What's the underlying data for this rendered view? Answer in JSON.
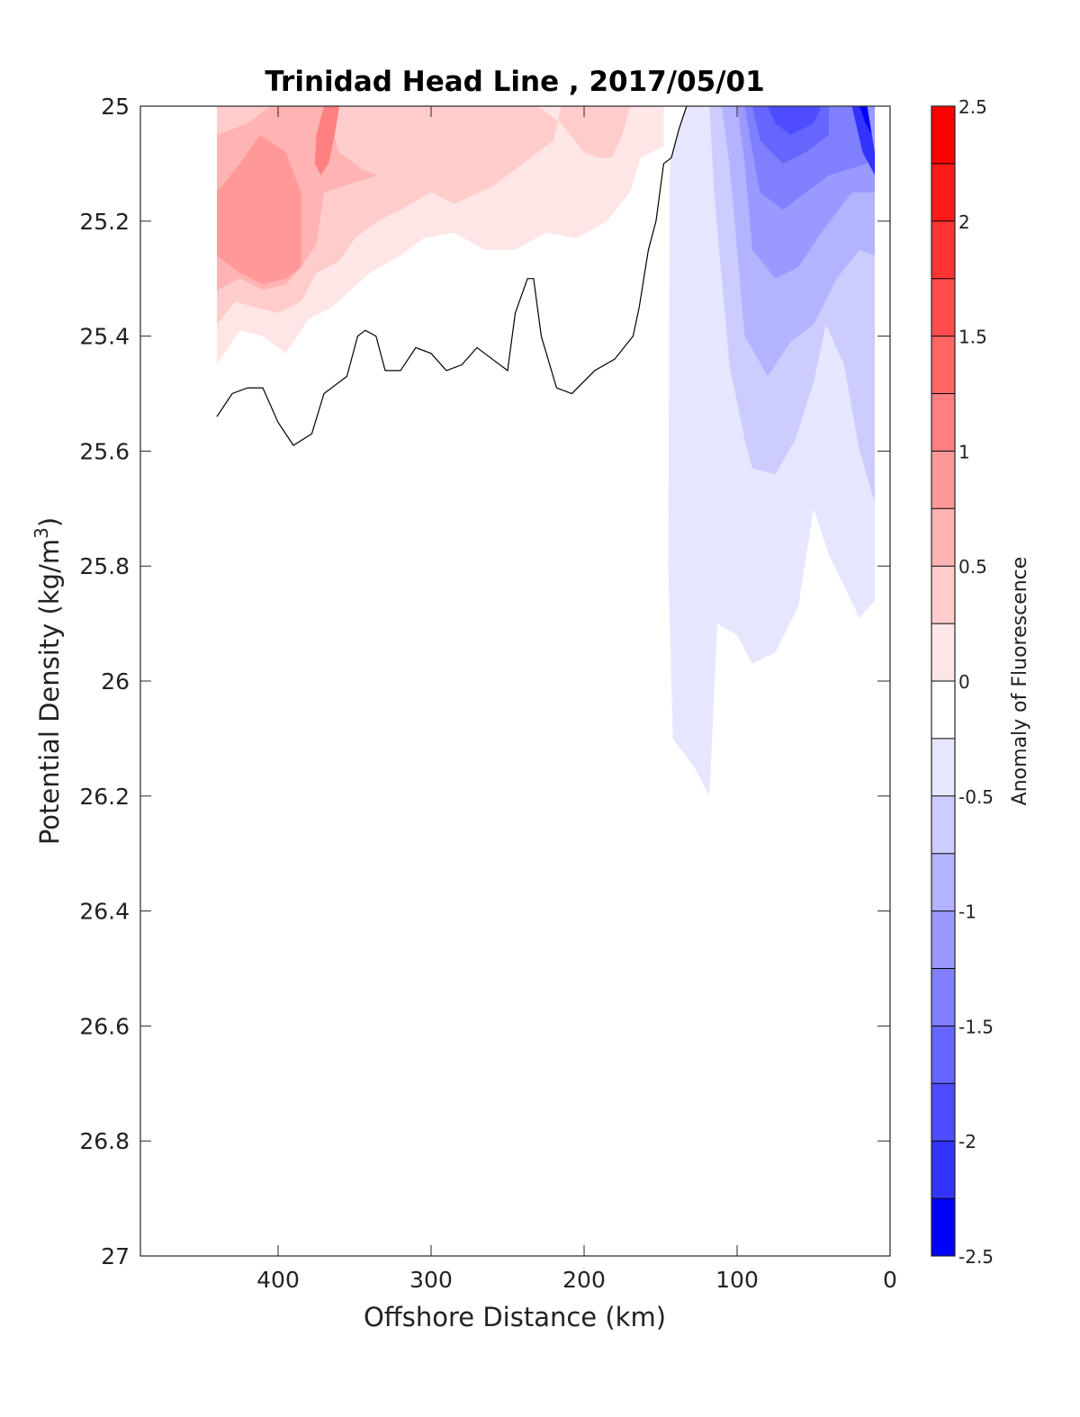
{
  "chart_data": {
    "type": "heatmap",
    "title": "Trinidad Head Line , 2017/05/01",
    "xlabel": "Offshore Distance (km)",
    "ylabel_main": "Potential Density (kg/m",
    "ylabel_sup": "3",
    "ylabel_close": ")",
    "colorbar_label": "Anomaly of Fluorescence",
    "x_reversed": true,
    "xlim": [
      490,
      0
    ],
    "ylim": [
      25,
      27
    ],
    "y_reversed": true,
    "x_ticks": [
      400,
      300,
      200,
      100,
      0
    ],
    "x_tick_labels": [
      "400",
      "300",
      "200",
      "100",
      "0"
    ],
    "y_ticks": [
      25,
      25.2,
      25.4,
      25.6,
      25.8,
      26,
      26.2,
      26.4,
      26.6,
      26.8,
      27
    ],
    "y_tick_labels": [
      "25",
      "25.2",
      "25.4",
      "25.6",
      "25.8",
      "26",
      "26.2",
      "26.4",
      "26.6",
      "26.8",
      "27"
    ],
    "colorbar_ticks": [
      2.5,
      2,
      1.5,
      1,
      0.5,
      0,
      -0.5,
      -1,
      -1.5,
      -2,
      -2.5
    ],
    "colorbar_tick_labels": [
      "2.5",
      "2",
      "1.5",
      "1",
      "0.5",
      "0",
      "-0.5",
      "-1",
      "-1.5",
      "-2",
      "-2.5"
    ],
    "colorbar_levels": [
      {
        "from": 2.25,
        "to": 2.5,
        "color": "#ff0000"
      },
      {
        "from": 2.0,
        "to": 2.25,
        "color": "#ff1a1a"
      },
      {
        "from": 1.75,
        "to": 2.0,
        "color": "#ff3333"
      },
      {
        "from": 1.5,
        "to": 1.75,
        "color": "#ff4d4d"
      },
      {
        "from": 1.25,
        "to": 1.5,
        "color": "#ff6666"
      },
      {
        "from": 1.0,
        "to": 1.25,
        "color": "#ff8080"
      },
      {
        "from": 0.75,
        "to": 1.0,
        "color": "#ff9999"
      },
      {
        "from": 0.5,
        "to": 0.75,
        "color": "#ffb3b3"
      },
      {
        "from": 0.25,
        "to": 0.5,
        "color": "#ffcccc"
      },
      {
        "from": 0.0,
        "to": 0.25,
        "color": "#ffe6e6"
      },
      {
        "from": -0.25,
        "to": 0.0,
        "color": "#ffffff"
      },
      {
        "from": -0.5,
        "to": -0.25,
        "color": "#e6e6ff"
      },
      {
        "from": -0.75,
        "to": -0.5,
        "color": "#ccccff"
      },
      {
        "from": -1.0,
        "to": -0.75,
        "color": "#b3b3ff"
      },
      {
        "from": -1.25,
        "to": -1.0,
        "color": "#9999ff"
      },
      {
        "from": -1.5,
        "to": -1.25,
        "color": "#8080ff"
      },
      {
        "from": -1.75,
        "to": -1.5,
        "color": "#6666ff"
      },
      {
        "from": -2.0,
        "to": -1.75,
        "color": "#4d4dff"
      },
      {
        "from": -2.25,
        "to": -2.0,
        "color": "#3333ff"
      },
      {
        "from": -2.5,
        "to": -2.25,
        "color": "#0000ff"
      }
    ],
    "contour_regions": [
      {
        "level": 0.25,
        "color": "#ffe6e6",
        "points": [
          [
            440,
            25
          ],
          [
            148,
            25
          ],
          [
            148,
            25.07
          ],
          [
            163,
            25.09
          ],
          [
            170,
            25.15
          ],
          [
            185,
            25.2
          ],
          [
            205,
            25.23
          ],
          [
            225,
            25.22
          ],
          [
            245,
            25.25
          ],
          [
            265,
            25.25
          ],
          [
            285,
            25.22
          ],
          [
            305,
            25.23
          ],
          [
            320,
            25.26
          ],
          [
            340,
            25.29
          ],
          [
            365,
            25.35
          ],
          [
            380,
            25.37
          ],
          [
            395,
            25.43
          ],
          [
            410,
            25.4
          ],
          [
            425,
            25.39
          ],
          [
            440,
            25.45
          ]
        ]
      },
      {
        "level": 0.5,
        "color": "#ffcccc",
        "points": [
          [
            440,
            25
          ],
          [
            310,
            25
          ],
          [
            380,
            25
          ],
          [
            325,
            25
          ],
          [
            275,
            25
          ],
          [
            230,
            25
          ],
          [
            215,
            25.03
          ],
          [
            200,
            25.08
          ],
          [
            190,
            25.09
          ],
          [
            182,
            25.09
          ],
          [
            175,
            25.05
          ],
          [
            170,
            25
          ],
          [
            215,
            25
          ],
          [
            220,
            25.06
          ],
          [
            240,
            25.1
          ],
          [
            260,
            25.14
          ],
          [
            285,
            25.17
          ],
          [
            300,
            25.15
          ],
          [
            320,
            25.18
          ],
          [
            335,
            25.2
          ],
          [
            350,
            25.23
          ],
          [
            360,
            25.27
          ],
          [
            375,
            25.29
          ],
          [
            385,
            25.34
          ],
          [
            400,
            25.36
          ],
          [
            415,
            25.35
          ],
          [
            428,
            25.34
          ],
          [
            440,
            25.38
          ]
        ]
      },
      {
        "level": 0.75,
        "color": "#ffb3b3",
        "points": [
          [
            440,
            25.05
          ],
          [
            420,
            25.03
          ],
          [
            405,
            25.0
          ],
          [
            370,
            25.0
          ],
          [
            360,
            25.08
          ],
          [
            345,
            25.11
          ],
          [
            335,
            25.12
          ],
          [
            370,
            25.15
          ],
          [
            375,
            25.24
          ],
          [
            385,
            25.28
          ],
          [
            395,
            25.31
          ],
          [
            410,
            25.32
          ],
          [
            425,
            25.3
          ],
          [
            440,
            25.32
          ]
        ]
      },
      {
        "level": 1.0,
        "color": "#ff9999",
        "points": [
          [
            440,
            25.15
          ],
          [
            425,
            25.1
          ],
          [
            412,
            25.05
          ],
          [
            395,
            25.08
          ],
          [
            385,
            25.15
          ],
          [
            385,
            25.28
          ],
          [
            395,
            25.3
          ],
          [
            410,
            25.31
          ],
          [
            425,
            25.29
          ],
          [
            440,
            25.26
          ]
        ]
      },
      {
        "level": 1.25,
        "color": "#ff8080",
        "points": [
          [
            370,
            25.0
          ],
          [
            360,
            25.0
          ],
          [
            363,
            25.05
          ],
          [
            367,
            25.1
          ],
          [
            372,
            25.12
          ],
          [
            376,
            25.1
          ],
          [
            375,
            25.05
          ]
        ]
      },
      {
        "level": -0.25,
        "color": "#e6e6ff",
        "points": [
          [
            133,
            25.0
          ],
          [
            10,
            25.0
          ],
          [
            10,
            25.86
          ],
          [
            20,
            25.89
          ],
          [
            40,
            25.78
          ],
          [
            50,
            25.7
          ],
          [
            60,
            25.87
          ],
          [
            75,
            25.95
          ],
          [
            90,
            25.97
          ],
          [
            100,
            25.92
          ],
          [
            113,
            25.9
          ],
          [
            118,
            26.2
          ],
          [
            128,
            26.15
          ],
          [
            142,
            26.1
          ],
          [
            145,
            25.8
          ],
          [
            144,
            25.1
          ]
        ]
      },
      {
        "level": -0.5,
        "color": "#ccccff",
        "points": [
          [
            118,
            25.0
          ],
          [
            10,
            25.0
          ],
          [
            10,
            25.69
          ],
          [
            20,
            25.6
          ],
          [
            30,
            25.45
          ],
          [
            42,
            25.38
          ],
          [
            50,
            25.48
          ],
          [
            62,
            25.58
          ],
          [
            75,
            25.64
          ],
          [
            90,
            25.63
          ],
          [
            95,
            25.58
          ],
          [
            105,
            25.45
          ],
          [
            110,
            25.3
          ],
          [
            115,
            25.15
          ]
        ]
      },
      {
        "level": -0.75,
        "color": "#b3b3ff",
        "points": [
          [
            110,
            25.0
          ],
          [
            10,
            25.0
          ],
          [
            10,
            25.26
          ],
          [
            20,
            25.25
          ],
          [
            35,
            25.3
          ],
          [
            50,
            25.38
          ],
          [
            65,
            25.41
          ],
          [
            80,
            25.47
          ],
          [
            95,
            25.4
          ],
          [
            100,
            25.25
          ],
          [
            105,
            25.1
          ]
        ]
      },
      {
        "level": -1.0,
        "color": "#9999ff",
        "points": [
          [
            100,
            25.0
          ],
          [
            10,
            25.0
          ],
          [
            10,
            25.15
          ],
          [
            25,
            25.15
          ],
          [
            45,
            25.22
          ],
          [
            60,
            25.28
          ],
          [
            75,
            25.3
          ],
          [
            90,
            25.25
          ],
          [
            95,
            25.1
          ]
        ]
      },
      {
        "level": -1.25,
        "color": "#8080ff",
        "points": [
          [
            95,
            25.0
          ],
          [
            15,
            25.0
          ],
          [
            15,
            25.1
          ],
          [
            40,
            25.12
          ],
          [
            55,
            25.15
          ],
          [
            70,
            25.18
          ],
          [
            85,
            25.15
          ],
          [
            90,
            25.08
          ]
        ]
      },
      {
        "level": -1.5,
        "color": "#6666ff",
        "points": [
          [
            90,
            25.0
          ],
          [
            40,
            25.0
          ],
          [
            40,
            25.05
          ],
          [
            55,
            25.08
          ],
          [
            70,
            25.1
          ],
          [
            85,
            25.06
          ]
        ]
      },
      {
        "level": -1.75,
        "color": "#4d4dff",
        "points": [
          [
            80,
            25.0
          ],
          [
            45,
            25.0
          ],
          [
            50,
            25.03
          ],
          [
            65,
            25.05
          ],
          [
            75,
            25.03
          ]
        ]
      },
      {
        "level": -2.0,
        "color": "#3333ff",
        "points": [
          [
            25,
            25.0
          ],
          [
            15,
            25.0
          ],
          [
            10,
            25.08
          ],
          [
            10,
            25.12
          ],
          [
            18,
            25.08
          ]
        ]
      },
      {
        "level": -2.25,
        "color": "#0000ff",
        "points": [
          [
            20,
            25.0
          ],
          [
            15,
            25.0
          ],
          [
            12,
            25.05
          ],
          [
            16,
            25.03
          ]
        ]
      }
    ],
    "zero_contour_line": [
      [
        440,
        25.54
      ],
      [
        430,
        25.5
      ],
      [
        420,
        25.49
      ],
      [
        410,
        25.49
      ],
      [
        400,
        25.55
      ],
      [
        390,
        25.59
      ],
      [
        378,
        25.57
      ],
      [
        370,
        25.5
      ],
      [
        355,
        25.47
      ],
      [
        348,
        25.4
      ],
      [
        343,
        25.39
      ],
      [
        336,
        25.4
      ],
      [
        330,
        25.46
      ],
      [
        320,
        25.46
      ],
      [
        310,
        25.42
      ],
      [
        300,
        25.43
      ],
      [
        290,
        25.46
      ],
      [
        280,
        25.45
      ],
      [
        270,
        25.42
      ],
      [
        260,
        25.44
      ],
      [
        250,
        25.46
      ],
      [
        245,
        25.36
      ],
      [
        237,
        25.3
      ],
      [
        233,
        25.3
      ],
      [
        228,
        25.4
      ],
      [
        218,
        25.49
      ],
      [
        208,
        25.5
      ],
      [
        193,
        25.46
      ],
      [
        180,
        25.44
      ],
      [
        168,
        25.4
      ],
      [
        164,
        25.35
      ],
      [
        158,
        25.25
      ],
      [
        153,
        25.2
      ],
      [
        148,
        25.1
      ],
      [
        143,
        25.09
      ],
      [
        138,
        25.04
      ],
      [
        133,
        25.0
      ]
    ]
  }
}
